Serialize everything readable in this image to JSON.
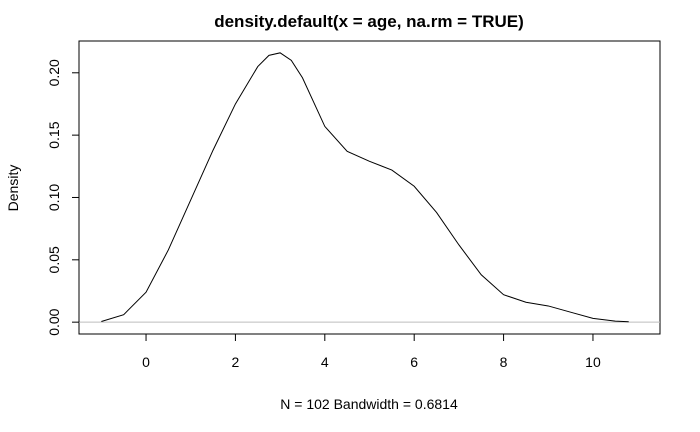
{
  "chart_data": {
    "type": "line",
    "title": "density.default(x = age, na.rm = TRUE)",
    "xlabel": "N = 102   Bandwidth = 0.6814",
    "ylabel": "Density",
    "xlim": [
      -1.5,
      11.5
    ],
    "ylim": [
      -0.0095,
      0.2255
    ],
    "x_ticks": [
      0,
      2,
      4,
      6,
      8,
      10
    ],
    "x_tick_labels": [
      "0",
      "2",
      "4",
      "6",
      "8",
      "10"
    ],
    "y_ticks": [
      0.0,
      0.05,
      0.1,
      0.15,
      0.2
    ],
    "y_tick_labels": [
      "0.00",
      "0.05",
      "0.10",
      "0.15",
      "0.20"
    ],
    "baseline": 0,
    "grid": false,
    "legend": "none",
    "series": [
      {
        "x": [
          -1.0,
          -0.5,
          0.0,
          0.5,
          1.0,
          1.5,
          2.0,
          2.5,
          2.75,
          3.0,
          3.25,
          3.5,
          4.0,
          4.5,
          5.0,
          5.5,
          6.0,
          6.5,
          7.0,
          7.5,
          8.0,
          8.5,
          9.0,
          9.5,
          10.0,
          10.5,
          10.8
        ],
        "y": [
          0.0005,
          0.006,
          0.024,
          0.058,
          0.098,
          0.138,
          0.175,
          0.205,
          0.214,
          0.216,
          0.21,
          0.196,
          0.157,
          0.137,
          0.129,
          0.122,
          0.109,
          0.088,
          0.062,
          0.038,
          0.022,
          0.016,
          0.013,
          0.008,
          0.003,
          0.0008,
          0.0003
        ]
      }
    ]
  }
}
